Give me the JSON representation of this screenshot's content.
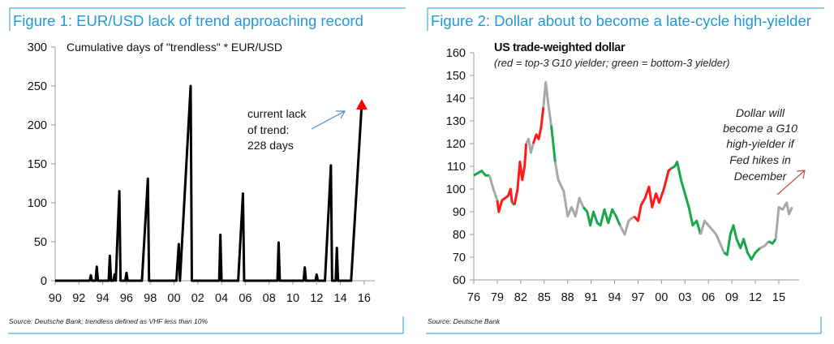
{
  "chart_data": [
    {
      "type": "line",
      "title": "Figure 1: EUR/USD lack of trend approaching record",
      "subtitle": "Cumulative days of \"trendless\" * EUR/USD",
      "source": "Source: Deutsche Bank; trendless defined as VHF less than 10%",
      "annotation": [
        "current lack",
        "of trend:",
        "228 days"
      ],
      "xlim": [
        1990,
        2016
      ],
      "ylim": [
        0,
        300
      ],
      "x_ticks": [
        "90",
        "92",
        "94",
        "96",
        "98",
        "00",
        "02",
        "04",
        "06",
        "08",
        "10",
        "12",
        "14",
        "16"
      ],
      "y_ticks": [
        "0",
        "50",
        "100",
        "150",
        "200",
        "250",
        "300"
      ],
      "grid": false,
      "colors": {
        "line": "#000000",
        "marker": "#ff0000",
        "arrow": "#4a8cc4",
        "title": "#1e9ad6"
      },
      "points": [
        [
          1990,
          0
        ],
        [
          1992.9,
          0
        ],
        [
          1993.0,
          7
        ],
        [
          1993.1,
          0
        ],
        [
          1993.4,
          0
        ],
        [
          1993.5,
          18
        ],
        [
          1993.6,
          0
        ],
        [
          1994.5,
          0
        ],
        [
          1994.6,
          32
        ],
        [
          1994.7,
          0
        ],
        [
          1994.9,
          0
        ],
        [
          1995.0,
          8
        ],
        [
          1995.1,
          0
        ],
        [
          1995.2,
          40
        ],
        [
          1995.4,
          115
        ],
        [
          1995.5,
          0
        ],
        [
          1995.9,
          0
        ],
        [
          1996.0,
          10
        ],
        [
          1996.1,
          0
        ],
        [
          1997.3,
          0
        ],
        [
          1997.8,
          131
        ],
        [
          1997.9,
          0
        ],
        [
          2000.2,
          0
        ],
        [
          2000.4,
          47
        ],
        [
          2000.5,
          0
        ],
        [
          2001.4,
          250
        ],
        [
          2001.5,
          0
        ],
        [
          2003.8,
          0
        ],
        [
          2003.9,
          59
        ],
        [
          2004.0,
          0
        ],
        [
          2005.4,
          0
        ],
        [
          2005.8,
          112
        ],
        [
          2005.9,
          0
        ],
        [
          2008.7,
          0
        ],
        [
          2008.8,
          49
        ],
        [
          2008.9,
          0
        ],
        [
          2010.9,
          0
        ],
        [
          2011.0,
          17
        ],
        [
          2011.1,
          0
        ],
        [
          2011.9,
          0
        ],
        [
          2012.0,
          8
        ],
        [
          2012.1,
          0
        ],
        [
          2012.7,
          0
        ],
        [
          2013.2,
          148
        ],
        [
          2013.3,
          0
        ],
        [
          2013.6,
          0
        ],
        [
          2013.7,
          42
        ],
        [
          2013.8,
          0
        ],
        [
          2014.9,
          0
        ],
        [
          2015.8,
          228
        ]
      ]
    },
    {
      "type": "line",
      "title": "Figure 2: Dollar about to become a late-cycle high-yielder",
      "subtitle": "US trade-weighted dollar",
      "subtitle2": "(red = top-3  G10 yielder;  green = bottom-3 yielder)",
      "source": "Source: Deutsche Bank",
      "annotation": [
        "Dollar will",
        "become a  G10",
        "high-yielder if",
        "Fed hikes in",
        "December"
      ],
      "xlim": [
        1976,
        2017
      ],
      "ylim": [
        60,
        160
      ],
      "x_ticks": [
        "76",
        "79",
        "82",
        "85",
        "88",
        "91",
        "94",
        "97",
        "00",
        "03",
        "06",
        "09",
        "12",
        "15"
      ],
      "y_ticks": [
        "60",
        "70",
        "80",
        "90",
        "100",
        "110",
        "120",
        "130",
        "140",
        "150",
        "160"
      ],
      "grid": false,
      "colors": {
        "red": "#ff1a1a",
        "green": "#1aa64a",
        "gray": "#a8a8a8",
        "arrow": "#c0504d",
        "title": "#1e9ad6"
      },
      "segments": [
        {
          "color": "green",
          "points": [
            [
              1976,
              106
            ],
            [
              1976.5,
              107
            ],
            [
              1977,
              108
            ],
            [
              1977.5,
              106
            ],
            [
              1978,
              106
            ]
          ]
        },
        {
          "color": "gray",
          "points": [
            [
              1978,
              106
            ],
            [
              1978.5,
              100
            ],
            [
              1979,
              95
            ]
          ]
        },
        {
          "color": "red",
          "points": [
            [
              1979,
              95
            ],
            [
              1979.2,
              90
            ],
            [
              1979.6,
              95
            ],
            [
              1980,
              96
            ],
            [
              1980.4,
              97
            ],
            [
              1980.7,
              100
            ],
            [
              1980.9,
              94
            ]
          ]
        },
        {
          "color": "green",
          "points": [
            [
              1980.9,
              94
            ],
            [
              1981.2,
              93
            ]
          ]
        },
        {
          "color": "red",
          "points": [
            [
              1981.2,
              93
            ],
            [
              1981.6,
              100
            ],
            [
              1981.9,
              112
            ],
            [
              1982.2,
              104
            ],
            [
              1982.5,
              110
            ],
            [
              1982.7,
              120
            ]
          ]
        },
        {
          "color": "gray",
          "points": [
            [
              1982.7,
              120
            ],
            [
              1983,
              122
            ],
            [
              1983.3,
              116
            ],
            [
              1983.6,
              120
            ]
          ]
        },
        {
          "color": "red",
          "points": [
            [
              1983.6,
              120
            ],
            [
              1984,
              124
            ],
            [
              1984.3,
              122
            ],
            [
              1984.6,
              127
            ],
            [
              1984.9,
              136
            ]
          ]
        },
        {
          "color": "gray",
          "points": [
            [
              1984.9,
              136
            ],
            [
              1985.2,
              147
            ],
            [
              1985.5,
              138
            ],
            [
              1985.9,
              128
            ]
          ]
        },
        {
          "color": "green",
          "points": [
            [
              1985.9,
              128
            ],
            [
              1986.1,
              122
            ],
            [
              1986.4,
              112
            ]
          ]
        },
        {
          "color": "gray",
          "points": [
            [
              1986.4,
              112
            ],
            [
              1986.8,
              104
            ],
            [
              1987.5,
              99
            ],
            [
              1988,
              88
            ],
            [
              1988.5,
              92
            ],
            [
              1989,
              88
            ],
            [
              1989.5,
              96
            ],
            [
              1990,
              92
            ]
          ]
        },
        {
          "color": "green",
          "points": [
            [
              1990,
              92
            ],
            [
              1990.5,
              90
            ],
            [
              1990.9,
              84
            ],
            [
              1991.3,
              90
            ],
            [
              1991.8,
              85
            ],
            [
              1992.2,
              84
            ],
            [
              1992.7,
              91
            ],
            [
              1993.2,
              85
            ],
            [
              1993.7,
              91
            ],
            [
              1994.2,
              88
            ],
            [
              1994.7,
              84
            ]
          ]
        },
        {
          "color": "gray",
          "points": [
            [
              1994.7,
              84
            ],
            [
              1995.3,
              80
            ],
            [
              1995.8,
              86
            ],
            [
              1996.5,
              88
            ]
          ]
        },
        {
          "color": "red",
          "points": [
            [
              1996.5,
              88
            ],
            [
              1997,
              86
            ],
            [
              1997.4,
              93
            ],
            [
              1997.9,
              96
            ],
            [
              1998.4,
              101
            ],
            [
              1998.8,
              92
            ],
            [
              1999.3,
              98
            ],
            [
              1999.7,
              94
            ],
            [
              2000.3,
              100
            ],
            [
              2000.9,
              108
            ],
            [
              2001.2,
              109
            ]
          ]
        },
        {
          "color": "green",
          "points": [
            [
              2001.2,
              109
            ],
            [
              2001.7,
              110
            ],
            [
              2002,
              112
            ],
            [
              2002.5,
              104
            ],
            [
              2003,
              98
            ],
            [
              2003.5,
              92
            ],
            [
              2004,
              84
            ],
            [
              2004.5,
              86
            ],
            [
              2005,
              80
            ]
          ]
        },
        {
          "color": "gray",
          "points": [
            [
              2005,
              80
            ],
            [
              2005.5,
              86
            ],
            [
              2006,
              84
            ],
            [
              2006.5,
              82
            ],
            [
              2007,
              80
            ],
            [
              2007.5,
              76
            ],
            [
              2008,
              72
            ]
          ]
        },
        {
          "color": "green",
          "points": [
            [
              2008,
              72
            ],
            [
              2008.4,
              71
            ],
            [
              2008.8,
              80
            ],
            [
              2009.2,
              84
            ],
            [
              2009.6,
              78
            ],
            [
              2010.1,
              74
            ],
            [
              2010.5,
              78
            ],
            [
              2011,
              72
            ],
            [
              2011.5,
              69
            ],
            [
              2012,
              72
            ],
            [
              2012.6,
              74
            ]
          ]
        },
        {
          "color": "gray",
          "points": [
            [
              2012.6,
              74
            ],
            [
              2013.2,
              75
            ],
            [
              2013.7,
              77
            ]
          ]
        },
        {
          "color": "green",
          "points": [
            [
              2013.7,
              77
            ],
            [
              2014.2,
              76
            ],
            [
              2014.6,
              78
            ]
          ]
        },
        {
          "color": "gray",
          "points": [
            [
              2014.6,
              78
            ],
            [
              2015,
              92
            ],
            [
              2015.5,
              91
            ],
            [
              2016,
              94
            ],
            [
              2016.3,
              89
            ],
            [
              2016.7,
              92
            ]
          ]
        }
      ]
    }
  ]
}
